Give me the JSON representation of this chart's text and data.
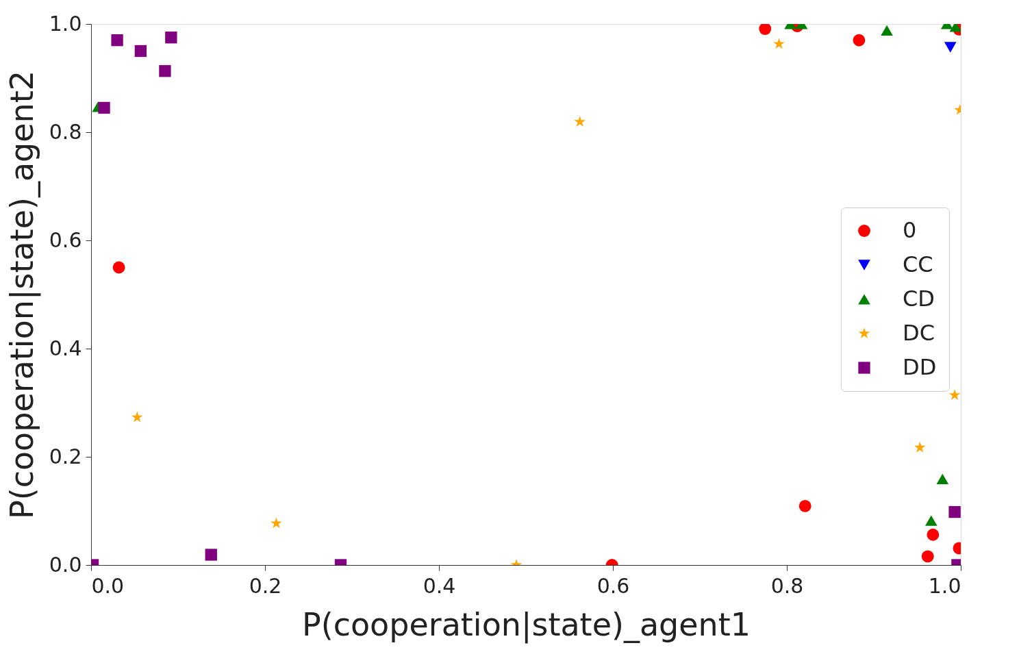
{
  "chart_data": {
    "type": "scatter",
    "xlabel": "P(cooperation|state)_agent1",
    "ylabel": "P(cooperation|state)_agent2",
    "xlim": [
      0,
      1
    ],
    "ylim": [
      0,
      1
    ],
    "xticks": [
      {
        "value": 0,
        "label": "0.0"
      },
      0.2,
      0.4,
      0.6,
      0.8,
      {
        "value": 1,
        "label": "1.0"
      }
    ],
    "yticks": [
      {
        "value": 0,
        "label": "0.0"
      },
      0.2,
      0.4,
      0.6,
      0.8,
      {
        "value": 1,
        "label": "1.0"
      }
    ],
    "grid": false,
    "legend": "right",
    "series": [
      {
        "name": "0",
        "color": "#ff0000",
        "marker": "circle",
        "x": [
          0.775,
          0.812,
          0.883,
          0.032,
          0.821,
          0.599,
          0.968,
          0.962,
          0.998,
          0.998
        ],
        "values": [
          0.991,
          0.996,
          0.97,
          0.55,
          0.109,
          0.0,
          0.056,
          0.016,
          0.031,
          0.99
        ]
      },
      {
        "name": "CC",
        "color": "#0000ff",
        "marker": "triangle-down",
        "x": [
          0.988
        ],
        "values": [
          0.957
        ]
      },
      {
        "name": "CD",
        "color": "#008000",
        "marker": "triangle",
        "x": [
          0.804,
          0.817,
          0.915,
          0.984,
          0.994,
          0.008,
          0.979,
          0.966
        ],
        "values": [
          1.0,
          1.0,
          0.988,
          1.0,
          0.995,
          0.847,
          0.159,
          0.082
        ]
      },
      {
        "name": "DC",
        "color": "#ffa500",
        "marker": "star",
        "x": [
          0.791,
          0.562,
          0.999,
          0.053,
          0.213,
          0.489,
          0.993,
          0.953
        ],
        "values": [
          0.963,
          0.819,
          0.841,
          0.273,
          0.077,
          0.0,
          0.314,
          0.217
        ]
      },
      {
        "name": "DD",
        "color": "#800080",
        "marker": "square",
        "x": [
          0.03,
          0.057,
          0.092,
          0.085,
          0.015,
          0.138,
          0.287,
          0.002,
          0.993,
          0.996
        ],
        "values": [
          0.97,
          0.95,
          0.975,
          0.913,
          0.845,
          0.019,
          0.0,
          0.0,
          0.098,
          0.0
        ]
      }
    ]
  }
}
